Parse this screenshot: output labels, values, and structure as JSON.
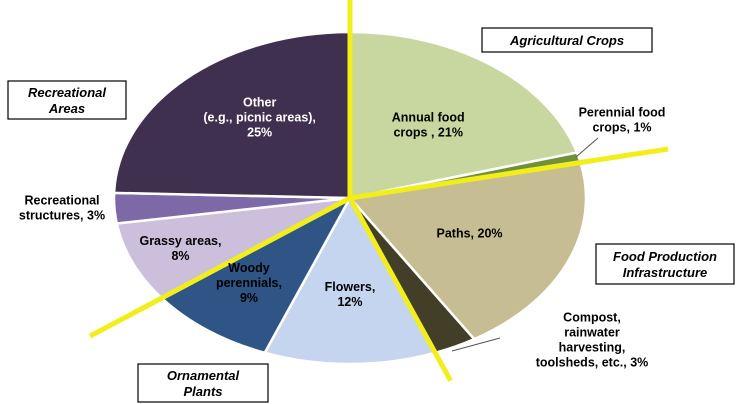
{
  "chart_data": {
    "type": "pie",
    "slices": [
      {
        "label_lines": [
          "Annual food",
          "crops , 21%"
        ],
        "value": 21,
        "color": "#c7d79f",
        "label_color": "#000000"
      },
      {
        "label_lines": [
          "Perennial food",
          "crops, 1%"
        ],
        "value": 1,
        "color": "#70913b",
        "label_color": "#000000"
      },
      {
        "label_lines": [
          "Paths, 20%"
        ],
        "value": 20,
        "color": "#c6bd92",
        "label_color": "#000000"
      },
      {
        "label_lines": [
          "Compost,",
          "rainwater",
          "harvesting,",
          "toolsheds, etc., 3%"
        ],
        "value": 3,
        "color": "#423e27",
        "label_color": "#000000"
      },
      {
        "label_lines": [
          "Flowers,",
          "12%"
        ],
        "value": 12,
        "color": "#c6d5ef",
        "label_color": "#000000"
      },
      {
        "label_lines": [
          "Woody",
          "perennials,",
          "9%"
        ],
        "value": 9,
        "color": "#2f5486",
        "label_color": "#000000"
      },
      {
        "label_lines": [
          "Grassy areas,",
          "8%"
        ],
        "value": 8,
        "color": "#cbbfdc",
        "label_color": "#000000"
      },
      {
        "label_lines": [
          "Recreational",
          "structures, 3%"
        ],
        "value": 3,
        "color": "#7d68a8",
        "label_color": "#000000"
      },
      {
        "label_lines": [
          "Other",
          "(e.g., picnic areas),",
          "25%"
        ],
        "value": 25,
        "color": "#40304f",
        "label_color": "#ffffff"
      }
    ],
    "categories": [
      {
        "name": "Agricultural Crops"
      },
      {
        "name": "Food Production Infrastructure",
        "lines": [
          "Food Production",
          "Infrastructure"
        ]
      },
      {
        "name": "Ornamental Plants",
        "lines": [
          "Ornamental",
          "Plants"
        ]
      },
      {
        "name": "Recreational Areas",
        "lines": [
          "Recreational",
          "Areas"
        ]
      }
    ],
    "divider_color": "#f2ee1a"
  }
}
